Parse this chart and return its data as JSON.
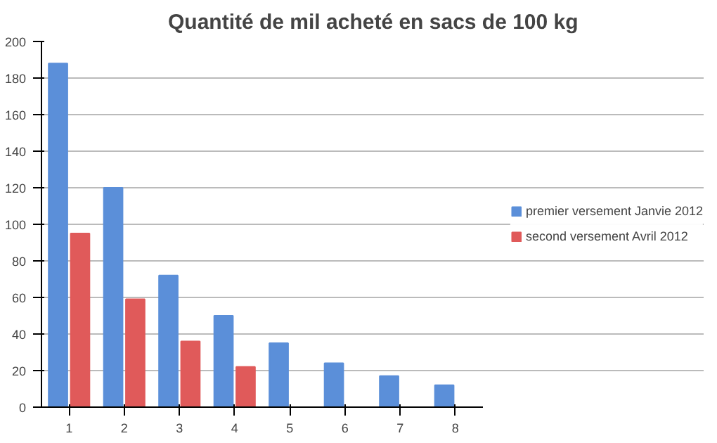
{
  "chart_data": {
    "type": "bar",
    "title": "Quantité de mil acheté en sacs de 100 kg",
    "categories": [
      "1",
      "2",
      "3",
      "4",
      "5",
      "6",
      "7",
      "8"
    ],
    "series": [
      {
        "name": "premier versement Janvie 2012",
        "color": "#5b8fd9",
        "values": [
          188,
          120,
          72,
          50,
          35,
          24,
          17,
          12
        ]
      },
      {
        "name": "second versement Avril 2012",
        "color": "#e05a5a",
        "values": [
          95,
          59,
          36,
          22,
          null,
          null,
          null,
          null
        ]
      }
    ],
    "ylim": [
      0,
      200
    ],
    "yticks": [
      0,
      20,
      40,
      60,
      80,
      100,
      120,
      140,
      160,
      180,
      200
    ],
    "grid": "y",
    "legend": "right"
  }
}
